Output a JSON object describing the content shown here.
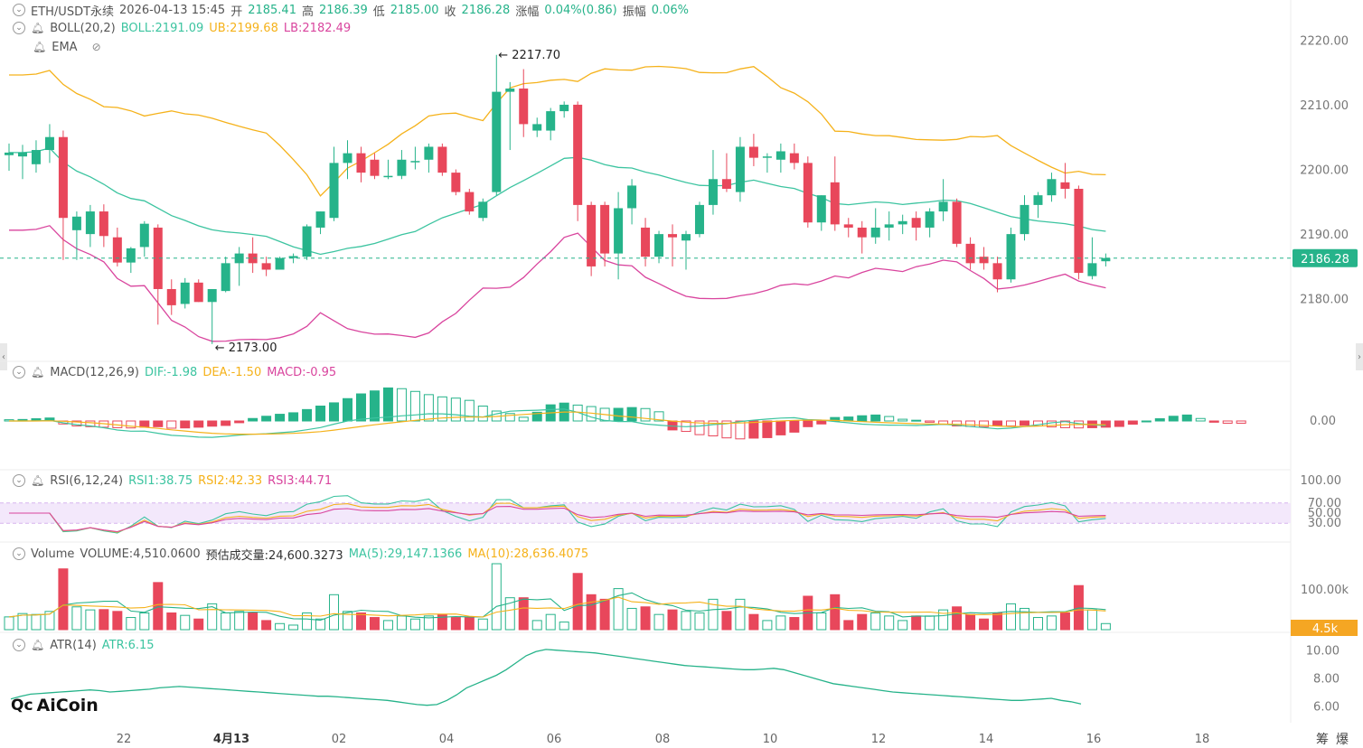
{
  "header": {
    "symbol": "ETH/USDT永续",
    "datetime": "2026-04-13 15:45",
    "open_label": "开",
    "open": "2185.41",
    "high_label": "高",
    "high": "2186.39",
    "low_label": "低",
    "low": "2185.00",
    "close_label": "收",
    "close": "2186.28",
    "change_label": "涨幅",
    "change": "0.04%(0.86)",
    "amp_label": "振幅",
    "amp": "0.06%"
  },
  "boll": {
    "label": "BOLL(20,2)",
    "mid": "BOLL:2191.09",
    "ub": "UB:2199.68",
    "lb": "LB:2182.49"
  },
  "ema": {
    "label": "EMA"
  },
  "macd": {
    "label": "MACD(12,26,9)",
    "dif": "DIF:-1.98",
    "dea": "DEA:-1.50",
    "macd": "MACD:-0.95"
  },
  "rsi": {
    "label": "RSI(6,12,24)",
    "rsi1": "RSI1:38.75",
    "rsi2": "RSI2:42.33",
    "rsi3": "RSI3:44.71"
  },
  "volume": {
    "label": "Volume",
    "vol": "VOLUME:4,510.0600",
    "est": "预估成交量:24,600.3273",
    "ma5": "MA(5):29,147.1366",
    "ma10": "MA(10):28,636.4075"
  },
  "atr": {
    "label": "ATR(14)",
    "atr": "ATR:6.15"
  },
  "brand": "AiCoin",
  "corner_labels": [
    "筹",
    "爆"
  ],
  "colors": {
    "up": "#26b38a",
    "down": "#e8475b",
    "boll_mid": "#3cc4a0",
    "boll_ub": "#f5b21b",
    "boll_lb": "#d9459e",
    "dif": "#3cc4a0",
    "dea": "#f5b21b",
    "rsi1": "#3cc4a0",
    "rsi2": "#f5b21b",
    "rsi3": "#d9459e",
    "rsi_band": "#f3e8fb",
    "last_price": "#26b38a",
    "vol_badge": "#f5a623"
  },
  "chart_data": {
    "type": "candlestick",
    "interval_desc": "multi-panel crypto chart",
    "x_tick_labels": [
      "22",
      "4月13",
      "02",
      "04",
      "06",
      "08",
      "10",
      "12",
      "14",
      "16",
      "18"
    ],
    "price_axis": {
      "ticks": [
        "2220.00",
        "2210.00",
        "2200.00",
        "2190.00",
        "2180.00"
      ],
      "range": [
        2172,
        2222
      ]
    },
    "last_price": "2186.28",
    "max_marker": "2217.70",
    "min_marker": "2173.00",
    "candles": [
      {
        "o": 2202.2,
        "h": 2204.0,
        "l": 2199.8,
        "c": 2202.6
      },
      {
        "o": 2202.0,
        "h": 2203.8,
        "l": 2198.5,
        "c": 2202.6
      },
      {
        "o": 2200.8,
        "h": 2204.5,
        "l": 2199.5,
        "c": 2203.0
      },
      {
        "o": 2203.0,
        "h": 2207.0,
        "l": 2201.0,
        "c": 2205.0
      },
      {
        "o": 2205.0,
        "h": 2206.0,
        "l": 2186.0,
        "c": 2192.5
      },
      {
        "o": 2190.6,
        "h": 2193.5,
        "l": 2186.0,
        "c": 2192.7
      },
      {
        "o": 2190.0,
        "h": 2194.5,
        "l": 2188.0,
        "c": 2193.5
      },
      {
        "o": 2193.5,
        "h": 2194.6,
        "l": 2188.0,
        "c": 2189.7
      },
      {
        "o": 2189.5,
        "h": 2191.0,
        "l": 2185.0,
        "c": 2185.6
      },
      {
        "o": 2185.6,
        "h": 2188.0,
        "l": 2184.0,
        "c": 2187.8
      },
      {
        "o": 2188.0,
        "h": 2192.0,
        "l": 2186.5,
        "c": 2191.6
      },
      {
        "o": 2191.0,
        "h": 2191.5,
        "l": 2176.0,
        "c": 2181.5
      },
      {
        "o": 2181.5,
        "h": 2183.0,
        "l": 2177.5,
        "c": 2179.0
      },
      {
        "o": 2179.2,
        "h": 2183.2,
        "l": 2178.5,
        "c": 2182.5
      },
      {
        "o": 2182.5,
        "h": 2183.0,
        "l": 2179.5,
        "c": 2179.5
      },
      {
        "o": 2179.5,
        "h": 2181.5,
        "l": 2173.0,
        "c": 2181.5
      },
      {
        "o": 2181.2,
        "h": 2186.5,
        "l": 2181.0,
        "c": 2185.5
      },
      {
        "o": 2185.5,
        "h": 2188.0,
        "l": 2182.0,
        "c": 2187.0
      },
      {
        "o": 2187.0,
        "h": 2189.5,
        "l": 2184.0,
        "c": 2185.5
      },
      {
        "o": 2185.5,
        "h": 2186.5,
        "l": 2183.5,
        "c": 2184.5
      },
      {
        "o": 2184.5,
        "h": 2186.5,
        "l": 2184.5,
        "c": 2186.3
      },
      {
        "o": 2186.3,
        "h": 2187.0,
        "l": 2185.5,
        "c": 2186.6
      },
      {
        "o": 2186.5,
        "h": 2191.5,
        "l": 2186.0,
        "c": 2191.2
      },
      {
        "o": 2191.0,
        "h": 2193.5,
        "l": 2190.0,
        "c": 2193.5
      },
      {
        "o": 2192.5,
        "h": 2203.5,
        "l": 2192.0,
        "c": 2201.0
      },
      {
        "o": 2201.0,
        "h": 2204.5,
        "l": 2198.5,
        "c": 2202.5
      },
      {
        "o": 2202.5,
        "h": 2203.5,
        "l": 2198.0,
        "c": 2199.5
      },
      {
        "o": 2201.5,
        "h": 2202.5,
        "l": 2198.5,
        "c": 2199.0
      },
      {
        "o": 2199.0,
        "h": 2201.5,
        "l": 2198.5,
        "c": 2199.0
      },
      {
        "o": 2199.0,
        "h": 2203.0,
        "l": 2198.5,
        "c": 2201.5
      },
      {
        "o": 2201.3,
        "h": 2203.5,
        "l": 2200.0,
        "c": 2201.3
      },
      {
        "o": 2201.5,
        "h": 2204.0,
        "l": 2199.5,
        "c": 2203.5
      },
      {
        "o": 2203.5,
        "h": 2204.0,
        "l": 2199.0,
        "c": 2199.5
      },
      {
        "o": 2199.5,
        "h": 2200.0,
        "l": 2196.0,
        "c": 2196.5
      },
      {
        "o": 2196.5,
        "h": 2197.0,
        "l": 2193.0,
        "c": 2193.5
      },
      {
        "o": 2192.5,
        "h": 2195.5,
        "l": 2192.0,
        "c": 2195.0
      },
      {
        "o": 2196.5,
        "h": 2217.7,
        "l": 2196.0,
        "c": 2212.0
      },
      {
        "o": 2212.0,
        "h": 2213.5,
        "l": 2203.0,
        "c": 2212.5
      },
      {
        "o": 2212.5,
        "h": 2215.5,
        "l": 2205.0,
        "c": 2207.0
      },
      {
        "o": 2206.0,
        "h": 2208.0,
        "l": 2205.0,
        "c": 2207.0
      },
      {
        "o": 2206.0,
        "h": 2209.5,
        "l": 2204.5,
        "c": 2209.0
      },
      {
        "o": 2209.0,
        "h": 2210.5,
        "l": 2208.0,
        "c": 2210.0
      },
      {
        "o": 2210.0,
        "h": 2210.5,
        "l": 2192.0,
        "c": 2194.5
      },
      {
        "o": 2194.5,
        "h": 2195.0,
        "l": 2183.5,
        "c": 2185.0
      },
      {
        "o": 2194.5,
        "h": 2195.0,
        "l": 2185.0,
        "c": 2187.0
      },
      {
        "o": 2187.0,
        "h": 2196.5,
        "l": 2183.0,
        "c": 2194.0
      },
      {
        "o": 2194.0,
        "h": 2198.5,
        "l": 2191.5,
        "c": 2197.5
      },
      {
        "o": 2191.0,
        "h": 2192.5,
        "l": 2185.0,
        "c": 2186.5
      },
      {
        "o": 2186.5,
        "h": 2190.5,
        "l": 2185.5,
        "c": 2190.0
      },
      {
        "o": 2190.0,
        "h": 2191.5,
        "l": 2185.0,
        "c": 2189.5
      },
      {
        "o": 2189.0,
        "h": 2190.5,
        "l": 2184.5,
        "c": 2190.0
      },
      {
        "o": 2190.0,
        "h": 2195.0,
        "l": 2189.5,
        "c": 2194.5
      },
      {
        "o": 2194.5,
        "h": 2203.0,
        "l": 2193.0,
        "c": 2198.5
      },
      {
        "o": 2198.5,
        "h": 2202.5,
        "l": 2196.5,
        "c": 2197.0
      },
      {
        "o": 2196.5,
        "h": 2205.0,
        "l": 2195.0,
        "c": 2203.5
      },
      {
        "o": 2203.5,
        "h": 2205.5,
        "l": 2200.5,
        "c": 2201.8
      },
      {
        "o": 2201.8,
        "h": 2202.5,
        "l": 2199.5,
        "c": 2202.0
      },
      {
        "o": 2201.5,
        "h": 2204.0,
        "l": 2199.5,
        "c": 2202.8
      },
      {
        "o": 2202.5,
        "h": 2204.0,
        "l": 2200.0,
        "c": 2201.0
      },
      {
        "o": 2201.0,
        "h": 2202.0,
        "l": 2191.0,
        "c": 2191.8
      },
      {
        "o": 2191.8,
        "h": 2196.0,
        "l": 2190.5,
        "c": 2196.0
      },
      {
        "o": 2198.0,
        "h": 2202.0,
        "l": 2190.5,
        "c": 2191.5
      },
      {
        "o": 2191.5,
        "h": 2192.5,
        "l": 2189.5,
        "c": 2191.0
      },
      {
        "o": 2191.0,
        "h": 2192.0,
        "l": 2187.0,
        "c": 2189.5
      },
      {
        "o": 2189.5,
        "h": 2194.0,
        "l": 2188.5,
        "c": 2191.0
      },
      {
        "o": 2191.0,
        "h": 2193.5,
        "l": 2189.0,
        "c": 2191.5
      },
      {
        "o": 2191.5,
        "h": 2193.0,
        "l": 2190.0,
        "c": 2192.0
      },
      {
        "o": 2192.5,
        "h": 2193.5,
        "l": 2189.0,
        "c": 2191.0
      },
      {
        "o": 2191.0,
        "h": 2194.0,
        "l": 2189.5,
        "c": 2193.5
      },
      {
        "o": 2193.5,
        "h": 2198.5,
        "l": 2192.0,
        "c": 2195.0
      },
      {
        "o": 2195.0,
        "h": 2195.5,
        "l": 2188.0,
        "c": 2188.5
      },
      {
        "o": 2188.5,
        "h": 2189.5,
        "l": 2184.5,
        "c": 2185.5
      },
      {
        "o": 2186.5,
        "h": 2188.0,
        "l": 2184.5,
        "c": 2185.5
      },
      {
        "o": 2185.5,
        "h": 2186.5,
        "l": 2181.0,
        "c": 2183.0
      },
      {
        "o": 2183.0,
        "h": 2191.0,
        "l": 2182.5,
        "c": 2190.0
      },
      {
        "o": 2190.0,
        "h": 2196.0,
        "l": 2189.0,
        "c": 2194.5
      },
      {
        "o": 2194.5,
        "h": 2196.5,
        "l": 2192.5,
        "c": 2196.0
      },
      {
        "o": 2196.0,
        "h": 2199.5,
        "l": 2195.0,
        "c": 2198.5
      },
      {
        "o": 2198.0,
        "h": 2201.0,
        "l": 2195.5,
        "c": 2197.0
      },
      {
        "o": 2197.0,
        "h": 2197.5,
        "l": 2183.0,
        "c": 2184.0
      },
      {
        "o": 2183.5,
        "h": 2189.5,
        "l": 2183.0,
        "c": 2185.5
      },
      {
        "o": 2185.8,
        "h": 2187.0,
        "l": 2185.0,
        "c": 2186.3
      }
    ],
    "macd_axis": {
      "ticks": [
        "0.00"
      ]
    },
    "macd_hist": [
      0.5,
      0.6,
      0.9,
      1.2,
      -1.2,
      -2.0,
      -2.3,
      -2.5,
      -2.7,
      -2.8,
      -2.5,
      -2.3,
      -2.9,
      -2.8,
      -2.5,
      -2.1,
      -1.8,
      -0.7,
      1.0,
      1.9,
      2.7,
      3.3,
      4.6,
      6.0,
      7.3,
      9.0,
      10.9,
      12.1,
      13.3,
      13.0,
      11.9,
      10.6,
      9.7,
      9.2,
      8.3,
      6.0,
      4.0,
      3.0,
      1.5,
      3.5,
      6.5,
      7.2,
      6.4,
      5.8,
      5.1,
      5.1,
      5.4,
      5.0,
      3.7,
      -3.6,
      -4.2,
      -5.5,
      -6.0,
      -6.8,
      -7.2,
      -6.9,
      -6.7,
      -5.6,
      -4.5,
      -2.3,
      -1.2,
      1.4,
      1.6,
      2.1,
      2.4,
      1.8,
      0.7,
      0.3,
      -0.5,
      -1.4,
      -2.0,
      -2.2,
      -2.3,
      -2.0,
      -2.0,
      -1.7,
      -2.0,
      -2.4,
      -2.7,
      -2.8,
      -2.7,
      -2.5,
      -2.2,
      -1.3,
      0.0,
      0.9,
      1.9,
      2.4,
      1.0,
      -0.5,
      -0.9,
      -0.9
    ],
    "rsi_axis": {
      "ticks": [
        "100.00",
        "70.00",
        "50.00",
        "30.00"
      ],
      "range": [
        0,
        100
      ]
    },
    "volume_axis": {
      "ticks": [
        "100.00k"
      ],
      "badge": "4.5k"
    },
    "atr_axis": {
      "ticks": [
        "10.00",
        "8.00",
        "6.00"
      ],
      "range": [
        4.8,
        10.5
      ]
    },
    "atr": [
      6.5,
      6.7,
      6.85,
      6.9,
      6.95,
      7.0,
      7.05,
      7.1,
      7.15,
      7.1,
      7.0,
      7.05,
      7.1,
      7.15,
      7.2,
      7.3,
      7.35,
      7.4,
      7.35,
      7.3,
      7.25,
      7.2,
      7.15,
      7.1,
      7.05,
      7.0,
      6.95,
      6.9,
      6.85,
      6.8,
      6.75,
      6.7,
      6.7,
      6.65,
      6.6,
      6.55,
      6.5,
      6.45,
      6.4,
      6.3,
      6.2,
      6.1,
      6.05,
      6.1,
      6.4,
      6.8,
      7.3,
      7.6,
      7.9,
      8.2,
      8.6,
      9.1,
      9.6,
      9.9,
      10.05,
      10.0,
      9.95,
      9.9,
      9.85,
      9.8,
      9.7,
      9.6,
      9.5,
      9.4,
      9.3,
      9.2,
      9.1,
      9.0,
      8.9,
      8.85,
      8.8,
      8.75,
      8.7,
      8.65,
      8.6,
      8.6,
      8.65,
      8.7,
      8.6,
      8.4,
      8.2,
      8.0,
      7.8,
      7.6,
      7.5,
      7.4,
      7.3,
      7.2,
      7.1,
      7.0,
      6.95,
      6.9,
      6.85,
      6.8,
      6.75,
      6.7,
      6.65,
      6.6,
      6.55,
      6.5,
      6.45,
      6.4,
      6.4,
      6.45,
      6.5,
      6.55,
      6.4,
      6.3,
      6.15
    ]
  }
}
